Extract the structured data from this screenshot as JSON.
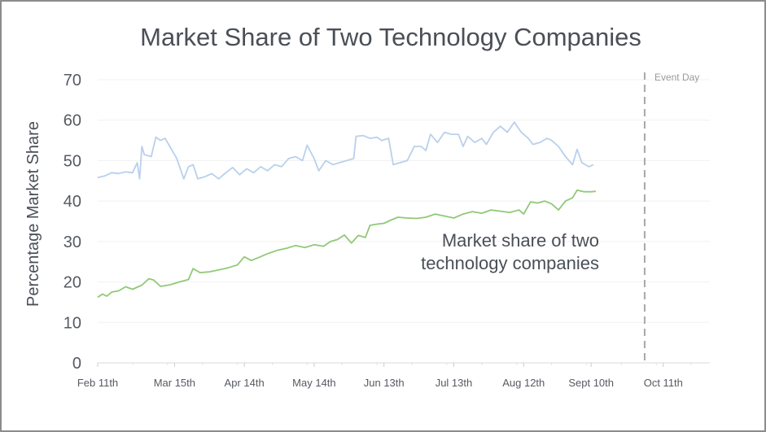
{
  "chart_data": {
    "type": "line",
    "title": "Market Share of Two Technology Companies",
    "ylabel": "Percentage Market Share",
    "xlabel": "",
    "ylim": [
      0,
      70
    ],
    "yticks": [
      0,
      10,
      20,
      30,
      40,
      50,
      60,
      70
    ],
    "xlim": [
      "2020-02-11",
      "2020-10-31"
    ],
    "xticks": [
      {
        "date": "2020-02-11",
        "label": "Feb 11th"
      },
      {
        "date": "2020-03-15",
        "label": "Mar 15th"
      },
      {
        "date": "2020-04-14",
        "label": "Apr 14th"
      },
      {
        "date": "2020-05-14",
        "label": "May 14th"
      },
      {
        "date": "2020-06-13",
        "label": "Jun 13th"
      },
      {
        "date": "2020-07-13",
        "label": "Jul 13th"
      },
      {
        "date": "2020-08-12",
        "label": "Aug 12th"
      },
      {
        "date": "2020-09-10",
        "label": "Sept 10th"
      },
      {
        "date": "2020-10-11",
        "label": "Oct 11th"
      }
    ],
    "grid": true,
    "event_marker": {
      "date": "2020-10-03",
      "label": "Event Day"
    },
    "annotation": {
      "lines": [
        "Market share of two",
        "technology companies"
      ]
    },
    "series": [
      {
        "color": "#b9d0ec",
        "points": [
          [
            "2020-02-11",
            45.8
          ],
          [
            "2020-02-14",
            46.2
          ],
          [
            "2020-02-17",
            47.0
          ],
          [
            "2020-02-20",
            46.8
          ],
          [
            "2020-02-23",
            47.2
          ],
          [
            "2020-02-26",
            47.0
          ],
          [
            "2020-02-28",
            49.5
          ],
          [
            "2020-02-29",
            45.5
          ],
          [
            "2020-03-01",
            53.5
          ],
          [
            "2020-03-02",
            51.5
          ],
          [
            "2020-03-05",
            51.0
          ],
          [
            "2020-03-07",
            55.8
          ],
          [
            "2020-03-09",
            55.0
          ],
          [
            "2020-03-11",
            55.5
          ],
          [
            "2020-03-13",
            53.5
          ],
          [
            "2020-03-16",
            50.5
          ],
          [
            "2020-03-19",
            45.5
          ],
          [
            "2020-03-21",
            48.5
          ],
          [
            "2020-03-23",
            49.0
          ],
          [
            "2020-03-25",
            45.5
          ],
          [
            "2020-03-28",
            46.0
          ],
          [
            "2020-03-31",
            46.8
          ],
          [
            "2020-04-03",
            45.5
          ],
          [
            "2020-04-06",
            47.0
          ],
          [
            "2020-04-09",
            48.3
          ],
          [
            "2020-04-12",
            46.5
          ],
          [
            "2020-04-15",
            48.0
          ],
          [
            "2020-04-18",
            47.0
          ],
          [
            "2020-04-21",
            48.5
          ],
          [
            "2020-04-24",
            47.5
          ],
          [
            "2020-04-27",
            49.0
          ],
          [
            "2020-04-30",
            48.5
          ],
          [
            "2020-05-03",
            50.5
          ],
          [
            "2020-05-06",
            51.0
          ],
          [
            "2020-05-09",
            50.0
          ],
          [
            "2020-05-11",
            53.8
          ],
          [
            "2020-05-14",
            50.5
          ],
          [
            "2020-05-16",
            47.5
          ],
          [
            "2020-05-19",
            50.0
          ],
          [
            "2020-05-22",
            49.0
          ],
          [
            "2020-05-25",
            49.5
          ],
          [
            "2020-05-28",
            50.0
          ],
          [
            "2020-05-31",
            50.5
          ],
          [
            "2020-06-01",
            56.0
          ],
          [
            "2020-06-04",
            56.2
          ],
          [
            "2020-06-07",
            55.5
          ],
          [
            "2020-06-10",
            55.8
          ],
          [
            "2020-06-12",
            55.0
          ],
          [
            "2020-06-15",
            55.5
          ],
          [
            "2020-06-17",
            49.0
          ],
          [
            "2020-06-20",
            49.5
          ],
          [
            "2020-06-23",
            50.0
          ],
          [
            "2020-06-26",
            53.5
          ],
          [
            "2020-06-29",
            53.5
          ],
          [
            "2020-07-01",
            52.5
          ],
          [
            "2020-07-03",
            56.5
          ],
          [
            "2020-07-06",
            54.5
          ],
          [
            "2020-07-09",
            57.0
          ],
          [
            "2020-07-12",
            56.5
          ],
          [
            "2020-07-15",
            56.5
          ],
          [
            "2020-07-17",
            53.5
          ],
          [
            "2020-07-19",
            56.0
          ],
          [
            "2020-07-22",
            54.5
          ],
          [
            "2020-07-25",
            55.5
          ],
          [
            "2020-07-27",
            54.0
          ],
          [
            "2020-07-30",
            57.0
          ],
          [
            "2020-08-02",
            58.5
          ],
          [
            "2020-08-05",
            57.0
          ],
          [
            "2020-08-08",
            59.5
          ],
          [
            "2020-08-11",
            57.0
          ],
          [
            "2020-08-14",
            55.5
          ],
          [
            "2020-08-16",
            54.0
          ],
          [
            "2020-08-19",
            54.5
          ],
          [
            "2020-08-22",
            55.5
          ],
          [
            "2020-08-24",
            55.0
          ],
          [
            "2020-08-27",
            53.5
          ],
          [
            "2020-08-30",
            51.0
          ],
          [
            "2020-09-02",
            49.0
          ],
          [
            "2020-09-04",
            52.8
          ],
          [
            "2020-09-06",
            49.5
          ],
          [
            "2020-09-09",
            48.5
          ],
          [
            "2020-09-11",
            49.0
          ]
        ]
      },
      {
        "color": "#90c978",
        "points": [
          [
            "2020-02-11",
            16.2
          ],
          [
            "2020-02-13",
            17.0
          ],
          [
            "2020-02-15",
            16.5
          ],
          [
            "2020-02-17",
            17.5
          ],
          [
            "2020-02-20",
            17.8
          ],
          [
            "2020-02-23",
            18.8
          ],
          [
            "2020-02-26",
            18.2
          ],
          [
            "2020-03-01",
            19.2
          ],
          [
            "2020-03-04",
            20.8
          ],
          [
            "2020-03-06",
            20.5
          ],
          [
            "2020-03-09",
            18.9
          ],
          [
            "2020-03-13",
            19.3
          ],
          [
            "2020-03-17",
            20.0
          ],
          [
            "2020-03-21",
            20.6
          ],
          [
            "2020-03-23",
            23.3
          ],
          [
            "2020-03-26",
            22.3
          ],
          [
            "2020-03-30",
            22.5
          ],
          [
            "2020-04-03",
            23.0
          ],
          [
            "2020-04-07",
            23.5
          ],
          [
            "2020-04-11",
            24.2
          ],
          [
            "2020-04-14",
            26.2
          ],
          [
            "2020-04-17",
            25.3
          ],
          [
            "2020-04-20",
            26.0
          ],
          [
            "2020-04-24",
            27.0
          ],
          [
            "2020-04-28",
            27.8
          ],
          [
            "2020-05-02",
            28.3
          ],
          [
            "2020-05-06",
            29.0
          ],
          [
            "2020-05-10",
            28.5
          ],
          [
            "2020-05-14",
            29.2
          ],
          [
            "2020-05-18",
            28.8
          ],
          [
            "2020-05-21",
            30.0
          ],
          [
            "2020-05-24",
            30.5
          ],
          [
            "2020-05-27",
            31.6
          ],
          [
            "2020-05-30",
            29.6
          ],
          [
            "2020-06-02",
            31.5
          ],
          [
            "2020-06-05",
            31.0
          ],
          [
            "2020-06-07",
            34.0
          ],
          [
            "2020-06-10",
            34.3
          ],
          [
            "2020-06-13",
            34.5
          ],
          [
            "2020-06-16",
            35.3
          ],
          [
            "2020-06-19",
            36.0
          ],
          [
            "2020-06-23",
            35.8
          ],
          [
            "2020-06-27",
            35.7
          ],
          [
            "2020-07-01",
            36.0
          ],
          [
            "2020-07-05",
            36.8
          ],
          [
            "2020-07-09",
            36.3
          ],
          [
            "2020-07-13",
            35.8
          ],
          [
            "2020-07-17",
            36.8
          ],
          [
            "2020-07-21",
            37.4
          ],
          [
            "2020-07-25",
            37.0
          ],
          [
            "2020-07-29",
            37.8
          ],
          [
            "2020-08-02",
            37.5
          ],
          [
            "2020-08-06",
            37.2
          ],
          [
            "2020-08-10",
            37.8
          ],
          [
            "2020-08-12",
            36.8
          ],
          [
            "2020-08-15",
            39.8
          ],
          [
            "2020-08-18",
            39.5
          ],
          [
            "2020-08-21",
            40.0
          ],
          [
            "2020-08-24",
            39.3
          ],
          [
            "2020-08-27",
            37.8
          ],
          [
            "2020-08-30",
            40.0
          ],
          [
            "2020-09-02",
            40.8
          ],
          [
            "2020-09-04",
            42.7
          ],
          [
            "2020-09-07",
            42.3
          ],
          [
            "2020-09-10",
            42.3
          ],
          [
            "2020-09-12",
            42.4
          ]
        ]
      }
    ]
  }
}
